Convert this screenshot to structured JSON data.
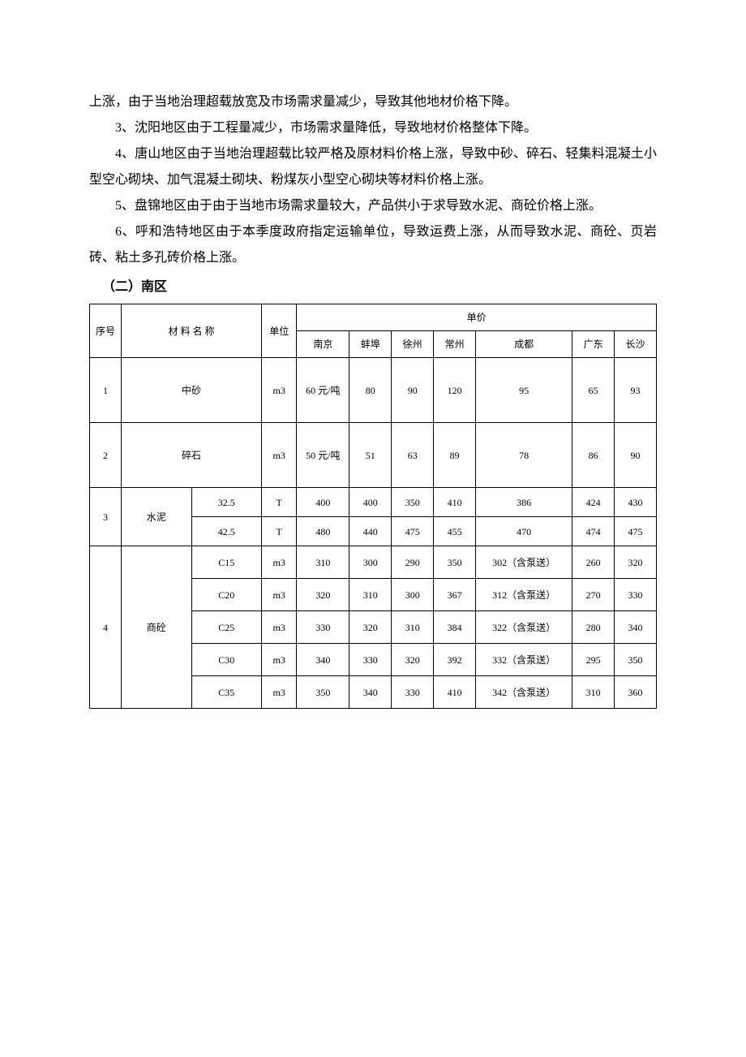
{
  "paragraphs": {
    "p1": "上涨，由于当地治理超载放宽及市场需求量减少，导致其他地材价格下降。",
    "p2": "3、沈阳地区由于工程量减少，市场需求量降低，导致地材价格整体下降。",
    "p3": "4、唐山地区由于当地治理超载比较严格及原材料价格上涨，导致中砂、碎石、轻集料混凝土小型空心砌块、加气混凝土砌块、粉煤灰小型空心砌块等材料价格上涨。",
    "p4": "5、盘锦地区由于由于当地市场需求量较大，产品供小于求导致水泥、商砼价格上涨。",
    "p5": "6、呼和浩特地区由于本季度政府指定运输单位，导致运费上涨，从而导致水泥、商砼、页岩砖、粘土多孔砖价格上涨。"
  },
  "section_title": "（二）南区",
  "table": {
    "header": {
      "seq": "序号",
      "material": "材 料 名 称",
      "unit": "单位",
      "price": "单价",
      "cities": [
        "南京",
        "蚌埠",
        "徐州",
        "常州",
        "成都",
        "广东",
        "长沙"
      ]
    },
    "rows": [
      {
        "seq": "1",
        "name": "中砂",
        "unit": "m3",
        "values": [
          "60 元/吨",
          "80",
          "90",
          "120",
          "95",
          "65",
          "93"
        ]
      },
      {
        "seq": "2",
        "name": "碎石",
        "unit": "m3",
        "values": [
          "50 元/吨",
          "51",
          "63",
          "89",
          "78",
          "86",
          "90"
        ]
      },
      {
        "seq": "3",
        "name": "水泥",
        "subs": [
          {
            "spec": "32.5",
            "unit": "T",
            "values": [
              "400",
              "400",
              "350",
              "410",
              "386",
              "424",
              "430"
            ]
          },
          {
            "spec": "42.5",
            "unit": "T",
            "values": [
              "480",
              "440",
              "475",
              "455",
              "470",
              "474",
              "475"
            ]
          }
        ]
      },
      {
        "seq": "4",
        "name": "商砼",
        "subs": [
          {
            "spec": "C15",
            "unit": "m3",
            "values": [
              "310",
              "300",
              "290",
              "350",
              "302（含泵送）",
              "260",
              "320"
            ]
          },
          {
            "spec": "C20",
            "unit": "m3",
            "values": [
              "320",
              "310",
              "300",
              "367",
              "312（含泵送）",
              "270",
              "330"
            ]
          },
          {
            "spec": "C25",
            "unit": "m3",
            "values": [
              "330",
              "320",
              "310",
              "384",
              "322（含泵送）",
              "280",
              "340"
            ]
          },
          {
            "spec": "C30",
            "unit": "m3",
            "values": [
              "340",
              "330",
              "320",
              "392",
              "332（含泵送）",
              "295",
              "350"
            ]
          },
          {
            "spec": "C35",
            "unit": "m3",
            "values": [
              "350",
              "340",
              "330",
              "410",
              "342（含泵送）",
              "310",
              "360"
            ]
          }
        ]
      }
    ]
  },
  "style": {
    "body_font_size": 16,
    "table_font_size": 12,
    "border_color": "#000000",
    "background": "#ffffff",
    "text_color": "#000000"
  }
}
